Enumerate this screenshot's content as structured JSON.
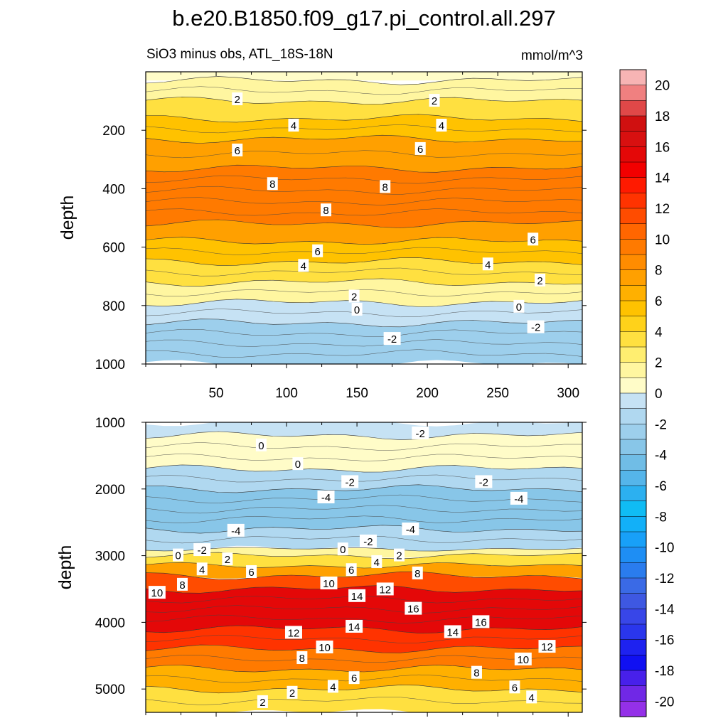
{
  "chart_data": [
    {
      "type": "heatmap",
      "title": "b.e20.B1850.f09_g17.pi_control.all.297",
      "subtitle_left": "SiO3 minus obs, ATL_18S-18N",
      "units": "mmol/m^3",
      "ylabel": "depth",
      "xlabel": "",
      "x_range": [
        0,
        310
      ],
      "x_ticks": [
        50,
        100,
        150,
        200,
        250,
        300
      ],
      "y_range": [
        0,
        1000
      ],
      "y_ticks": [
        200,
        400,
        600,
        800,
        1000
      ],
      "y_inverted": true,
      "bands": [
        {
          "top": 0,
          "bottom": 30,
          "value": 0
        },
        {
          "top": 30,
          "bottom": 100,
          "value": 1
        },
        {
          "top": 100,
          "bottom": 160,
          "value": 3
        },
        {
          "top": 160,
          "bottom": 230,
          "value": 5
        },
        {
          "top": 230,
          "bottom": 330,
          "value": 7
        },
        {
          "top": 330,
          "bottom": 520,
          "value": 9
        },
        {
          "top": 520,
          "bottom": 580,
          "value": 7
        },
        {
          "top": 580,
          "bottom": 650,
          "value": 5
        },
        {
          "top": 650,
          "bottom": 720,
          "value": 3
        },
        {
          "top": 720,
          "bottom": 790,
          "value": 1
        },
        {
          "top": 790,
          "bottom": 860,
          "value": -1
        },
        {
          "top": 860,
          "bottom": 1000,
          "value": -3
        }
      ],
      "contour_labels": [
        {
          "x": 65,
          "y": 95,
          "text": "2"
        },
        {
          "x": 205,
          "y": 100,
          "text": "2"
        },
        {
          "x": 105,
          "y": 185,
          "text": "4"
        },
        {
          "x": 210,
          "y": 185,
          "text": "4"
        },
        {
          "x": 65,
          "y": 270,
          "text": "6"
        },
        {
          "x": 195,
          "y": 265,
          "text": "6"
        },
        {
          "x": 90,
          "y": 385,
          "text": "8"
        },
        {
          "x": 170,
          "y": 395,
          "text": "8"
        },
        {
          "x": 128,
          "y": 475,
          "text": "8"
        },
        {
          "x": 275,
          "y": 575,
          "text": "6"
        },
        {
          "x": 122,
          "y": 615,
          "text": "6"
        },
        {
          "x": 243,
          "y": 660,
          "text": "4"
        },
        {
          "x": 112,
          "y": 665,
          "text": "4"
        },
        {
          "x": 280,
          "y": 715,
          "text": "2"
        },
        {
          "x": 148,
          "y": 770,
          "text": "2"
        },
        {
          "x": 265,
          "y": 805,
          "text": "0"
        },
        {
          "x": 150,
          "y": 815,
          "text": "0"
        },
        {
          "x": 277,
          "y": 875,
          "text": "-2"
        },
        {
          "x": 175,
          "y": 915,
          "text": "-2"
        }
      ]
    },
    {
      "type": "heatmap",
      "ylabel": "depth",
      "xlabel": "",
      "x_range": [
        0,
        310
      ],
      "y_range": [
        1000,
        5350
      ],
      "y_ticks": [
        1000,
        2000,
        3000,
        4000,
        5000
      ],
      "y_inverted": true,
      "bands": [
        {
          "top": 1000,
          "bottom": 1200,
          "value": -1
        },
        {
          "top": 1200,
          "bottom": 1700,
          "value": 0
        },
        {
          "top": 1700,
          "bottom": 2000,
          "value": -2
        },
        {
          "top": 2000,
          "bottom": 2600,
          "value": -4
        },
        {
          "top": 2600,
          "bottom": 2900,
          "value": -2
        },
        {
          "top": 2900,
          "bottom": 3000,
          "value": 1
        },
        {
          "top": 3000,
          "bottom": 3150,
          "value": 3
        },
        {
          "top": 3150,
          "bottom": 3300,
          "value": 7
        },
        {
          "top": 3300,
          "bottom": 3500,
          "value": 11
        },
        {
          "top": 3500,
          "bottom": 4100,
          "value": 15
        },
        {
          "top": 4100,
          "bottom": 4400,
          "value": 12
        },
        {
          "top": 4400,
          "bottom": 4700,
          "value": 9
        },
        {
          "top": 4700,
          "bottom": 5000,
          "value": 6
        },
        {
          "top": 5000,
          "bottom": 5350,
          "value": 3
        }
      ],
      "contour_labels": [
        {
          "x": 195,
          "y": 1170,
          "text": "-2"
        },
        {
          "x": 82,
          "y": 1350,
          "text": "0"
        },
        {
          "x": 108,
          "y": 1630,
          "text": "0"
        },
        {
          "x": 145,
          "y": 1900,
          "text": "-2"
        },
        {
          "x": 240,
          "y": 1900,
          "text": "-2"
        },
        {
          "x": 128,
          "y": 2130,
          "text": "-4"
        },
        {
          "x": 265,
          "y": 2150,
          "text": "-4"
        },
        {
          "x": 64,
          "y": 2630,
          "text": "-4"
        },
        {
          "x": 188,
          "y": 2610,
          "text": "-4"
        },
        {
          "x": 158,
          "y": 2790,
          "text": "-2"
        },
        {
          "x": 40,
          "y": 2920,
          "text": "-2"
        },
        {
          "x": 140,
          "y": 2910,
          "text": "0"
        },
        {
          "x": 23,
          "y": 3000,
          "text": "0"
        },
        {
          "x": 180,
          "y": 3000,
          "text": "2"
        },
        {
          "x": 58,
          "y": 3060,
          "text": "2"
        },
        {
          "x": 164,
          "y": 3100,
          "text": "4"
        },
        {
          "x": 40,
          "y": 3210,
          "text": "4"
        },
        {
          "x": 146,
          "y": 3220,
          "text": "6"
        },
        {
          "x": 75,
          "y": 3250,
          "text": "6"
        },
        {
          "x": 193,
          "y": 3270,
          "text": "8"
        },
        {
          "x": 26,
          "y": 3440,
          "text": "8"
        },
        {
          "x": 130,
          "y": 3420,
          "text": "10"
        },
        {
          "x": 8,
          "y": 3560,
          "text": "10"
        },
        {
          "x": 170,
          "y": 3510,
          "text": "12"
        },
        {
          "x": 150,
          "y": 3610,
          "text": "14"
        },
        {
          "x": 190,
          "y": 3800,
          "text": "16"
        },
        {
          "x": 238,
          "y": 4000,
          "text": "16"
        },
        {
          "x": 148,
          "y": 4070,
          "text": "14"
        },
        {
          "x": 218,
          "y": 4150,
          "text": "14"
        },
        {
          "x": 105,
          "y": 4160,
          "text": "12"
        },
        {
          "x": 285,
          "y": 4370,
          "text": "12"
        },
        {
          "x": 127,
          "y": 4380,
          "text": "10"
        },
        {
          "x": 268,
          "y": 4560,
          "text": "10"
        },
        {
          "x": 111,
          "y": 4540,
          "text": "8"
        },
        {
          "x": 235,
          "y": 4760,
          "text": "8"
        },
        {
          "x": 148,
          "y": 4840,
          "text": "6"
        },
        {
          "x": 262,
          "y": 4980,
          "text": "6"
        },
        {
          "x": 133,
          "y": 4970,
          "text": "4"
        },
        {
          "x": 274,
          "y": 5130,
          "text": "4"
        },
        {
          "x": 104,
          "y": 5060,
          "text": "2"
        },
        {
          "x": 83,
          "y": 5200,
          "text": "2"
        }
      ]
    }
  ],
  "colorbar": {
    "levels": [
      -20,
      -18,
      -16,
      -14,
      -12,
      -10,
      -8,
      -6,
      -4,
      -2,
      0,
      2,
      4,
      6,
      8,
      10,
      12,
      14,
      16,
      18,
      20
    ],
    "labels": [
      "20",
      "18",
      "16",
      "14",
      "12",
      "10",
      "8",
      "6",
      "4",
      "2",
      "0",
      "-2",
      "-4",
      "-6",
      "-8",
      "-10",
      "-12",
      "-14",
      "-16",
      "-18",
      "-20"
    ],
    "colors_top_to_bottom": [
      "#f7b4b4",
      "#f08080",
      "#e04848",
      "#d01010",
      "#d81010",
      "#e40808",
      "#f20000",
      "#ff1a00",
      "#ff3300",
      "#ff4c00",
      "#ff6600",
      "#ff7a00",
      "#ff8c00",
      "#ffa000",
      "#ffb000",
      "#ffc200",
      "#ffd21a",
      "#ffe040",
      "#ffee70",
      "#fff6a0",
      "#fffcc8",
      "#c6e2f4",
      "#b0d8f0",
      "#9dcfec",
      "#88c6e8",
      "#70bde6",
      "#55b5ea",
      "#2cb0f0",
      "#10bcf4",
      "#12b0f8",
      "#18a0f8",
      "#1e8ef4",
      "#2a7cee",
      "#3a6ae6",
      "#3e58e2",
      "#3846e8",
      "#2a36ec",
      "#1e22f0",
      "#1010f2",
      "#4820ea",
      "#7028e6",
      "#9430e8"
    ]
  }
}
